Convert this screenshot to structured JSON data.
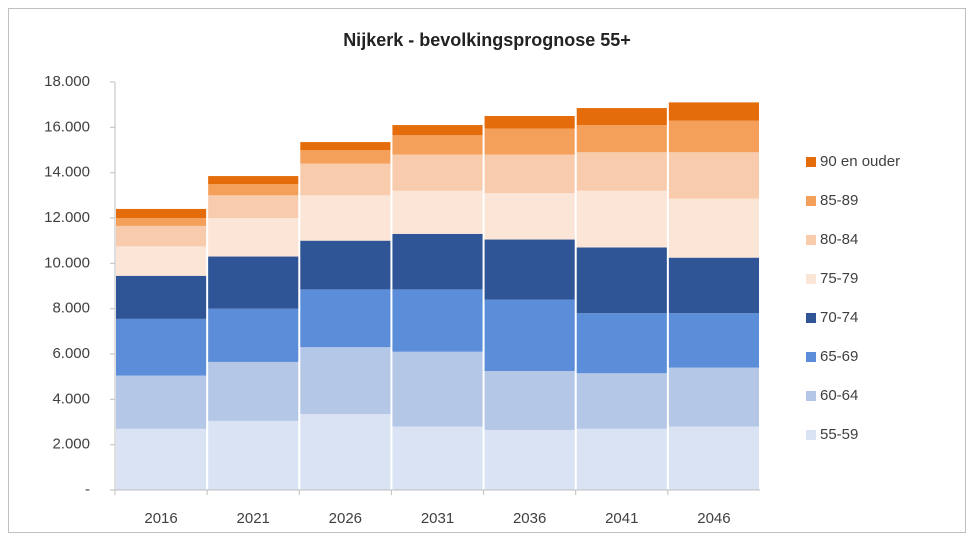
{
  "chart_data": {
    "type": "stacked-bar",
    "title": "Nijkerk - bevolkingsprognose 55+",
    "categories": [
      "2016",
      "2021",
      "2026",
      "2031",
      "2036",
      "2041",
      "2046"
    ],
    "series": [
      {
        "name": "55-59",
        "color": "#dae3f3",
        "values": [
          2700,
          3050,
          3350,
          2800,
          2650,
          2700,
          2800
        ]
      },
      {
        "name": "60-64",
        "color": "#b4c7e7",
        "values": [
          2350,
          2600,
          2950,
          3300,
          2600,
          2450,
          2600
        ]
      },
      {
        "name": "65-69",
        "color": "#5b8dd8",
        "values": [
          2500,
          2350,
          2550,
          2750,
          3150,
          2650,
          2400
        ]
      },
      {
        "name": "70-74",
        "color": "#2f5597",
        "values": [
          1900,
          2300,
          2150,
          2450,
          2650,
          2900,
          2450
        ]
      },
      {
        "name": "75-79",
        "color": "#fbe5d6",
        "values": [
          1300,
          1700,
          2000,
          1900,
          2050,
          2500,
          2600
        ]
      },
      {
        "name": "80-84",
        "color": "#f8cbad",
        "values": [
          900,
          1000,
          1400,
          1600,
          1700,
          1700,
          2050
        ]
      },
      {
        "name": "85-89",
        "color": "#f4a05a",
        "values": [
          350,
          500,
          600,
          850,
          1150,
          1200,
          1400
        ]
      },
      {
        "name": "90 en ouder",
        "color": "#e46c0a",
        "values": [
          400,
          350,
          350,
          450,
          550,
          750,
          800
        ]
      }
    ],
    "ylim": [
      0,
      18000
    ],
    "yticks": [
      {
        "value": 0,
        "label": "-"
      },
      {
        "value": 2000,
        "label": "2.000"
      },
      {
        "value": 4000,
        "label": "4.000"
      },
      {
        "value": 6000,
        "label": "6.000"
      },
      {
        "value": 8000,
        "label": "8.000"
      },
      {
        "value": 10000,
        "label": "10.000"
      },
      {
        "value": 12000,
        "label": "12.000"
      },
      {
        "value": 14000,
        "label": "14.000"
      },
      {
        "value": 16000,
        "label": "16.000"
      },
      {
        "value": 18000,
        "label": "18.000"
      }
    ],
    "grid": false,
    "legend": "right"
  }
}
